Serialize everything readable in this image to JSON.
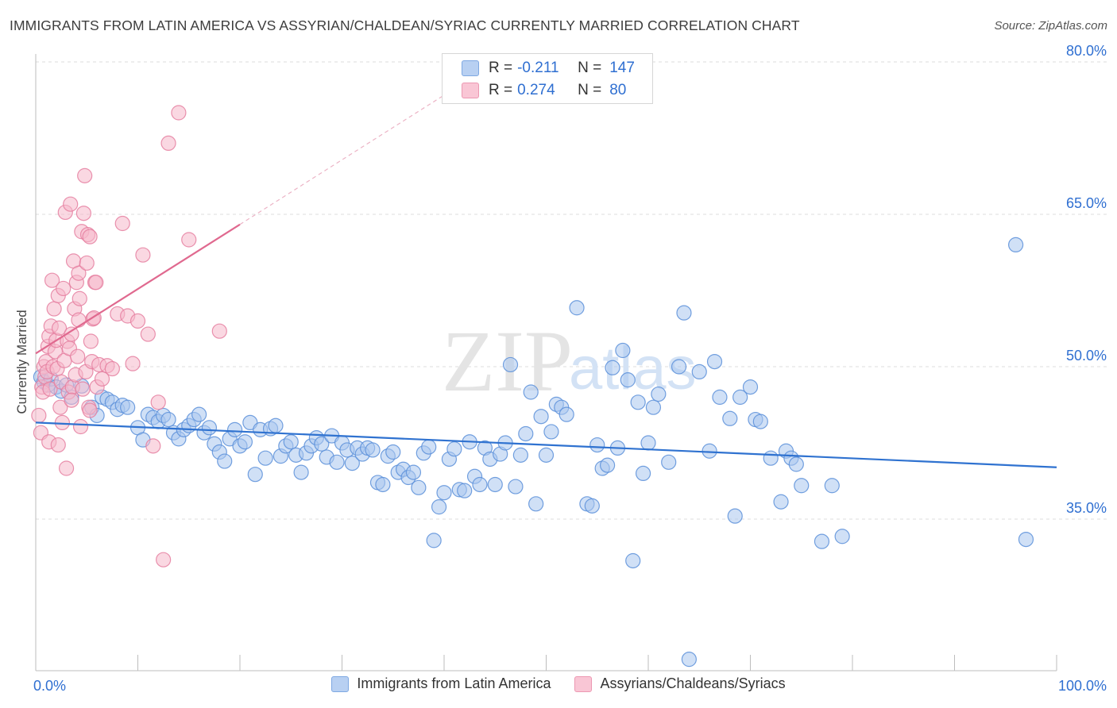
{
  "header": {
    "title": "IMMIGRANTS FROM LATIN AMERICA VS ASSYRIAN/CHALDEAN/SYRIAC CURRENTLY MARRIED CORRELATION CHART",
    "source": "Source: ZipAtlas.com"
  },
  "watermark": {
    "zip": "ZIP",
    "atlas": "atlas"
  },
  "stats_legend": {
    "row1": {
      "r_label": "R =",
      "r_value": "-0.211",
      "n_label": "N =",
      "n_value": "147"
    },
    "row2": {
      "r_label": "R =",
      "r_value": "0.274",
      "n_label": "N =",
      "n_value": "80"
    }
  },
  "colors": {
    "blue_fill": "#a9c6ee",
    "blue_stroke": "#5b8fd9",
    "blue_line": "#2f72d0",
    "pink_fill": "#f6b8cb",
    "pink_stroke": "#e57fa0",
    "pink_line": "#e0698f",
    "tick_text": "#2f6fd1",
    "grid": "#dcdcdc"
  },
  "chart_data": {
    "type": "scatter",
    "title": "IMMIGRANTS FROM LATIN AMERICA VS ASSYRIAN/CHALDEAN/SYRIAC CURRENTLY MARRIED CORRELATION CHART",
    "xlabel": "",
    "ylabel": "Currently Married",
    "xlim": [
      0,
      100
    ],
    "ylim": [
      20,
      83
    ],
    "x_tick_labels": [
      "0.0%",
      "100.0%"
    ],
    "y_ticks": [
      35,
      50,
      65,
      80
    ],
    "y_tick_labels": [
      "35.0%",
      "50.0%",
      "65.0%",
      "80.0%"
    ],
    "grid": true,
    "legend_position": "bottom",
    "series": [
      {
        "name": "Immigrants from Latin America",
        "color": "#5b8fd9",
        "r": -0.211,
        "n": 147,
        "trend": {
          "x": [
            0,
            100
          ],
          "y": [
            44.5,
            40.1
          ]
        },
        "points": [
          [
            0.5,
            49
          ],
          [
            0.8,
            48.5
          ],
          [
            1.2,
            48.2
          ],
          [
            1.5,
            48.8
          ],
          [
            2,
            48
          ],
          [
            2.5,
            47.6
          ],
          [
            3,
            48.2
          ],
          [
            3.5,
            47
          ],
          [
            4.5,
            48.1
          ],
          [
            5.5,
            46
          ],
          [
            6,
            45.2
          ],
          [
            6.5,
            47
          ],
          [
            7,
            46.8
          ],
          [
            7.5,
            46.5
          ],
          [
            8,
            45.8
          ],
          [
            8.5,
            46.2
          ],
          [
            9,
            46
          ],
          [
            10,
            44
          ],
          [
            10.5,
            42.8
          ],
          [
            11,
            45.3
          ],
          [
            11.5,
            45
          ],
          [
            12,
            44.6
          ],
          [
            12.5,
            45.2
          ],
          [
            13,
            44.8
          ],
          [
            13.5,
            43.5
          ],
          [
            14,
            42.9
          ],
          [
            14.5,
            43.8
          ],
          [
            15,
            44.2
          ],
          [
            15.5,
            44.8
          ],
          [
            16,
            45.3
          ],
          [
            16.5,
            43.5
          ],
          [
            17,
            44
          ],
          [
            17.5,
            42.4
          ],
          [
            18,
            41.6
          ],
          [
            18.5,
            40.7
          ],
          [
            19,
            42.9
          ],
          [
            19.5,
            43.8
          ],
          [
            20,
            42.2
          ],
          [
            20.5,
            42.6
          ],
          [
            21,
            44.5
          ],
          [
            21.5,
            39.4
          ],
          [
            22,
            43.8
          ],
          [
            22.5,
            41
          ],
          [
            23,
            43.9
          ],
          [
            23.5,
            44.2
          ],
          [
            24,
            41.2
          ],
          [
            24.5,
            42.2
          ],
          [
            25,
            42.6
          ],
          [
            25.5,
            41.3
          ],
          [
            26,
            39.6
          ],
          [
            26.5,
            41.5
          ],
          [
            27,
            42.2
          ],
          [
            27.5,
            43
          ],
          [
            28,
            42.4
          ],
          [
            28.5,
            41.1
          ],
          [
            29,
            43.2
          ],
          [
            29.5,
            40.6
          ],
          [
            30,
            42.5
          ],
          [
            30.5,
            41.8
          ],
          [
            31,
            40.5
          ],
          [
            31.5,
            42
          ],
          [
            32,
            41.4
          ],
          [
            32.5,
            42
          ],
          [
            33,
            41.8
          ],
          [
            33.5,
            38.6
          ],
          [
            34,
            38.4
          ],
          [
            34.5,
            41.2
          ],
          [
            35,
            41.6
          ],
          [
            35.5,
            39.6
          ],
          [
            36,
            39.9
          ],
          [
            36.5,
            39.1
          ],
          [
            37,
            39.6
          ],
          [
            37.5,
            38.1
          ],
          [
            38,
            41.5
          ],
          [
            38.5,
            42.1
          ],
          [
            39,
            32.9
          ],
          [
            39.5,
            36.2
          ],
          [
            40,
            37.6
          ],
          [
            40.5,
            40.9
          ],
          [
            41,
            41.9
          ],
          [
            41.5,
            37.9
          ],
          [
            42,
            37.8
          ],
          [
            42.5,
            42.6
          ],
          [
            43,
            39.2
          ],
          [
            43.5,
            38.4
          ],
          [
            44,
            42
          ],
          [
            44.5,
            40.9
          ],
          [
            45,
            38.4
          ],
          [
            45.5,
            41.4
          ],
          [
            46,
            42.5
          ],
          [
            46.5,
            50.2
          ],
          [
            47,
            38.2
          ],
          [
            47.5,
            41.3
          ],
          [
            48,
            43.4
          ],
          [
            48.5,
            47.5
          ],
          [
            49,
            36.5
          ],
          [
            49.5,
            45.1
          ],
          [
            50,
            41.3
          ],
          [
            50.5,
            43.6
          ],
          [
            51,
            46.3
          ],
          [
            51.5,
            46
          ],
          [
            52,
            45.3
          ],
          [
            53,
            55.8
          ],
          [
            54,
            36.5
          ],
          [
            54.5,
            36.3
          ],
          [
            55,
            42.3
          ],
          [
            55.5,
            40
          ],
          [
            56,
            40.3
          ],
          [
            56.5,
            49.9
          ],
          [
            57,
            42
          ],
          [
            57.5,
            51.6
          ],
          [
            58,
            48.7
          ],
          [
            58.5,
            30.9
          ],
          [
            59,
            46.5
          ],
          [
            59.5,
            39.5
          ],
          [
            60,
            42.5
          ],
          [
            60.5,
            46
          ],
          [
            61,
            47.3
          ],
          [
            62,
            40.6
          ],
          [
            63,
            50
          ],
          [
            63.5,
            55.3
          ],
          [
            64,
            21.2
          ],
          [
            65,
            49.5
          ],
          [
            66,
            41.7
          ],
          [
            66.5,
            50.5
          ],
          [
            67,
            47
          ],
          [
            68,
            44.9
          ],
          [
            68.5,
            35.3
          ],
          [
            69,
            47
          ],
          [
            70,
            48
          ],
          [
            70.5,
            44.8
          ],
          [
            71,
            44.6
          ],
          [
            72,
            41
          ],
          [
            73,
            36.7
          ],
          [
            73.5,
            41.7
          ],
          [
            74,
            41
          ],
          [
            74.5,
            40.4
          ],
          [
            75,
            38.3
          ],
          [
            77,
            32.8
          ],
          [
            78,
            38.3
          ],
          [
            79,
            33.3
          ],
          [
            96,
            62
          ],
          [
            97,
            33
          ]
        ]
      },
      {
        "name": "Assyrians/Chaldeans/Syriacs",
        "color": "#e57fa0",
        "r": 0.274,
        "n": 80,
        "trend": {
          "x": [
            0,
            20
          ],
          "y": [
            51.3,
            64.0
          ]
        },
        "trend_dashed": {
          "x": [
            20,
            42
          ],
          "y": [
            64.0,
            78.0
          ]
        },
        "points": [
          [
            0.3,
            45.2
          ],
          [
            0.5,
            43.5
          ],
          [
            0.6,
            48
          ],
          [
            0.7,
            47.5
          ],
          [
            0.8,
            50
          ],
          [
            0.9,
            49
          ],
          [
            1,
            50.5
          ],
          [
            1.1,
            49.5
          ],
          [
            1.2,
            52
          ],
          [
            1.3,
            53
          ],
          [
            1.4,
            47.8
          ],
          [
            1.5,
            54
          ],
          [
            1.6,
            58.5
          ],
          [
            1.7,
            50
          ],
          [
            1.8,
            55.7
          ],
          [
            1.9,
            51.5
          ],
          [
            2,
            52.6
          ],
          [
            2.1,
            49.8
          ],
          [
            2.2,
            57
          ],
          [
            2.3,
            53.8
          ],
          [
            2.4,
            46
          ],
          [
            2.5,
            48.5
          ],
          [
            2.6,
            44.5
          ],
          [
            2.7,
            57.7
          ],
          [
            2.8,
            50.6
          ],
          [
            2.9,
            65.2
          ],
          [
            3,
            40
          ],
          [
            3.1,
            52.5
          ],
          [
            3.2,
            47.5
          ],
          [
            3.3,
            51.8
          ],
          [
            3.4,
            66
          ],
          [
            3.5,
            53.2
          ],
          [
            3.6,
            48
          ],
          [
            3.7,
            60.4
          ],
          [
            3.8,
            55.7
          ],
          [
            3.9,
            49.2
          ],
          [
            4,
            58.3
          ],
          [
            4.1,
            51
          ],
          [
            4.2,
            59.2
          ],
          [
            4.3,
            56.7
          ],
          [
            4.4,
            44.1
          ],
          [
            4.5,
            63.3
          ],
          [
            4.6,
            47.8
          ],
          [
            4.7,
            65.1
          ],
          [
            4.8,
            68.8
          ],
          [
            4.9,
            49.5
          ],
          [
            5,
            60.2
          ],
          [
            5.1,
            63
          ],
          [
            5.2,
            46
          ],
          [
            5.3,
            62.8
          ],
          [
            5.4,
            52.5
          ],
          [
            5.5,
            50.5
          ],
          [
            5.6,
            54.7
          ],
          [
            5.7,
            54.8
          ],
          [
            5.8,
            58.3
          ],
          [
            5.9,
            58.3
          ],
          [
            6,
            48
          ],
          [
            6.2,
            50.2
          ],
          [
            6.5,
            48.8
          ],
          [
            7,
            50.1
          ],
          [
            7.5,
            49.8
          ],
          [
            8,
            55.2
          ],
          [
            8.5,
            64.1
          ],
          [
            9,
            55
          ],
          [
            9.5,
            50.3
          ],
          [
            10,
            54.5
          ],
          [
            10.5,
            61
          ],
          [
            11,
            53.2
          ],
          [
            11.5,
            42.2
          ],
          [
            12,
            46.5
          ],
          [
            12.5,
            31
          ],
          [
            13,
            72
          ],
          [
            14,
            75
          ],
          [
            15,
            62.5
          ],
          [
            18,
            53.5
          ],
          [
            1.3,
            42.6
          ],
          [
            2.2,
            42.3
          ],
          [
            3.5,
            46.7
          ],
          [
            4.2,
            54.6
          ],
          [
            5.3,
            45.7
          ]
        ]
      }
    ]
  },
  "bottom_legend": {
    "item1": "Immigrants from Latin America",
    "item2": "Assyrians/Chaldeans/Syriacs"
  }
}
